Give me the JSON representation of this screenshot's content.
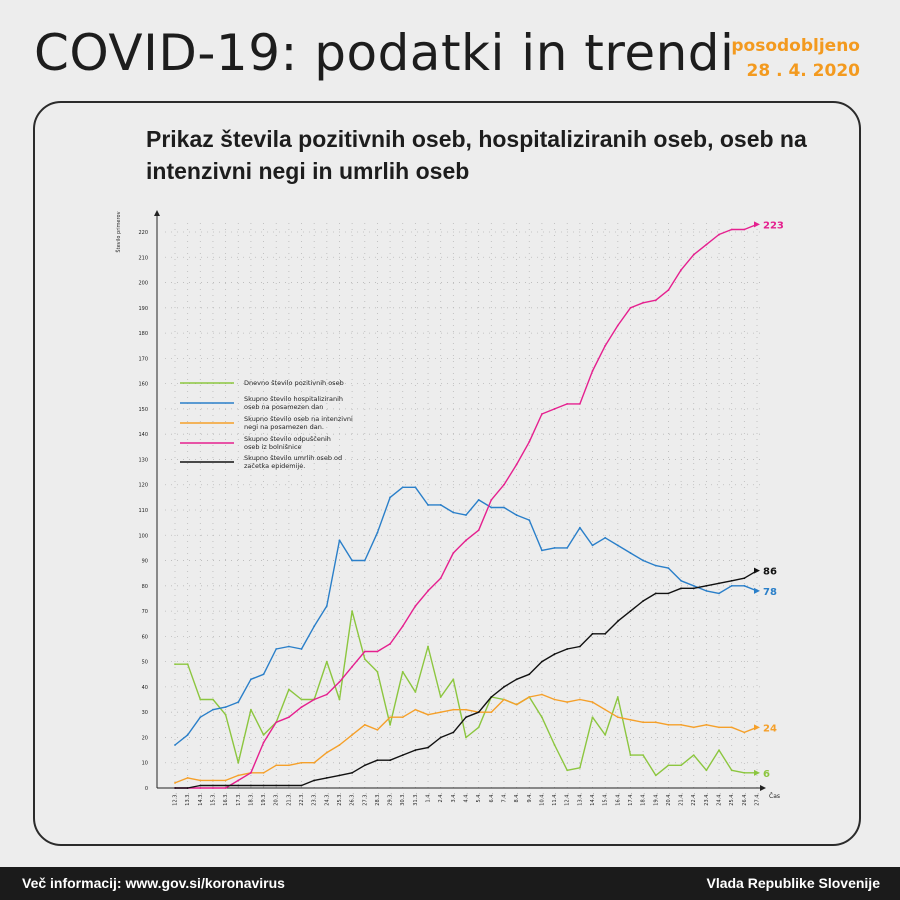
{
  "header": {
    "title": "COVID-19: podatki in trendi",
    "updated_label": "posodobljeno",
    "updated_date": "28 . 4. 2020"
  },
  "chart_title": "Prikaz števila pozitivnih oseb, hospitaliziranih oseb, oseb na intenzivni negi in umrlih oseb",
  "footer": {
    "left": "Več informacij: www.gov.si/koronavirus",
    "right": "Vlada Republike Slovenije"
  },
  "colors": {
    "green": "#8cc63f",
    "blue": "#2a7fc9",
    "orange": "#f5a02a",
    "pink": "#e5208f",
    "black": "#111111"
  },
  "chart_data": {
    "type": "line",
    "ylabel": "Število primerov",
    "xlabel": "Čas",
    "ylim": [
      0,
      225
    ],
    "yticks": [
      0,
      10,
      20,
      30,
      40,
      50,
      60,
      70,
      80,
      90,
      100,
      110,
      120,
      130,
      140,
      150,
      160,
      170,
      180,
      190,
      200,
      210,
      220
    ],
    "grid": true,
    "legend_position": "left",
    "categories": [
      "12.3.",
      "13.3.",
      "14.3.",
      "15.3.",
      "16.3.",
      "17.3.",
      "18.3.",
      "19.3.",
      "20.3.",
      "21.3.",
      "22.3.",
      "23.3.",
      "24.3.",
      "25.3.",
      "26.3.",
      "27.3.",
      "28.3.",
      "29.3.",
      "30.3.",
      "31.3.",
      "1.4.",
      "2.4.",
      "3.4.",
      "4.4.",
      "5.4.",
      "6.4.",
      "7.4.",
      "8.4.",
      "9.4.",
      "10.4.",
      "11.4.",
      "12.4.",
      "13.4.",
      "14.4.",
      "15.4.",
      "16.4.",
      "17.4.",
      "18.4.",
      "19.4.",
      "20.4.",
      "21.4.",
      "22.4.",
      "23.4.",
      "24.4.",
      "25.4.",
      "26.4.",
      "27.4."
    ],
    "series": [
      {
        "name": "Dnevno število pozitivnih oseb",
        "color_key": "green",
        "end_label": "6",
        "values": [
          49,
          49,
          35,
          35,
          29,
          10,
          31,
          21,
          26,
          39,
          35,
          35,
          50,
          35,
          70,
          51,
          46,
          25,
          46,
          38,
          56,
          36,
          43,
          20,
          24,
          36,
          35,
          33,
          36,
          28,
          17,
          7,
          8,
          28,
          21,
          36,
          13,
          13,
          5,
          9,
          9,
          13,
          7,
          15,
          7,
          6,
          6
        ]
      },
      {
        "name": "Skupno število hospitaliziranih oseb na posamezen dan",
        "color_key": "blue",
        "end_label": "78",
        "values": [
          17,
          21,
          28,
          31,
          32,
          34,
          43,
          45,
          55,
          56,
          55,
          64,
          72,
          98,
          90,
          90,
          101,
          115,
          119,
          119,
          112,
          112,
          109,
          108,
          114,
          111,
          111,
          108,
          106,
          94,
          95,
          95,
          103,
          96,
          99,
          96,
          93,
          90,
          88,
          87,
          82,
          80,
          78,
          77,
          80,
          80,
          78
        ]
      },
      {
        "name": "Skupno število oseb na intenzivni negi na posamezen dan.",
        "color_key": "orange",
        "end_label": "24",
        "values": [
          2,
          4,
          3,
          3,
          3,
          5,
          6,
          6,
          9,
          9,
          10,
          10,
          14,
          17,
          21,
          25,
          23,
          28,
          28,
          31,
          29,
          30,
          31,
          31,
          30,
          30,
          35,
          33,
          36,
          37,
          35,
          34,
          35,
          34,
          31,
          28,
          27,
          26,
          26,
          25,
          25,
          24,
          25,
          24,
          24,
          22,
          24
        ]
      },
      {
        "name": "Skupno število odpuščenih oseb iz bolnišnice",
        "color_key": "pink",
        "end_label": "223",
        "values": [
          0,
          0,
          0,
          0,
          0,
          3,
          6,
          18,
          26,
          28,
          32,
          35,
          37,
          42,
          48,
          54,
          54,
          57,
          64,
          72,
          78,
          83,
          93,
          98,
          102,
          114,
          120,
          128,
          137,
          148,
          150,
          152,
          152,
          165,
          175,
          183,
          190,
          192,
          193,
          197,
          205,
          211,
          215,
          219,
          221,
          221,
          223
        ]
      },
      {
        "name": "Skupno število umrlih oseb od začetka epidemije.",
        "color_key": "black",
        "end_label": "86",
        "values": [
          0,
          0,
          1,
          1,
          1,
          1,
          1,
          1,
          1,
          1,
          1,
          3,
          4,
          5,
          6,
          9,
          11,
          11,
          13,
          15,
          16,
          20,
          22,
          28,
          30,
          36,
          40,
          43,
          45,
          50,
          53,
          55,
          56,
          61,
          61,
          66,
          70,
          74,
          77,
          77,
          79,
          79,
          80,
          81,
          82,
          83,
          86
        ]
      }
    ]
  }
}
